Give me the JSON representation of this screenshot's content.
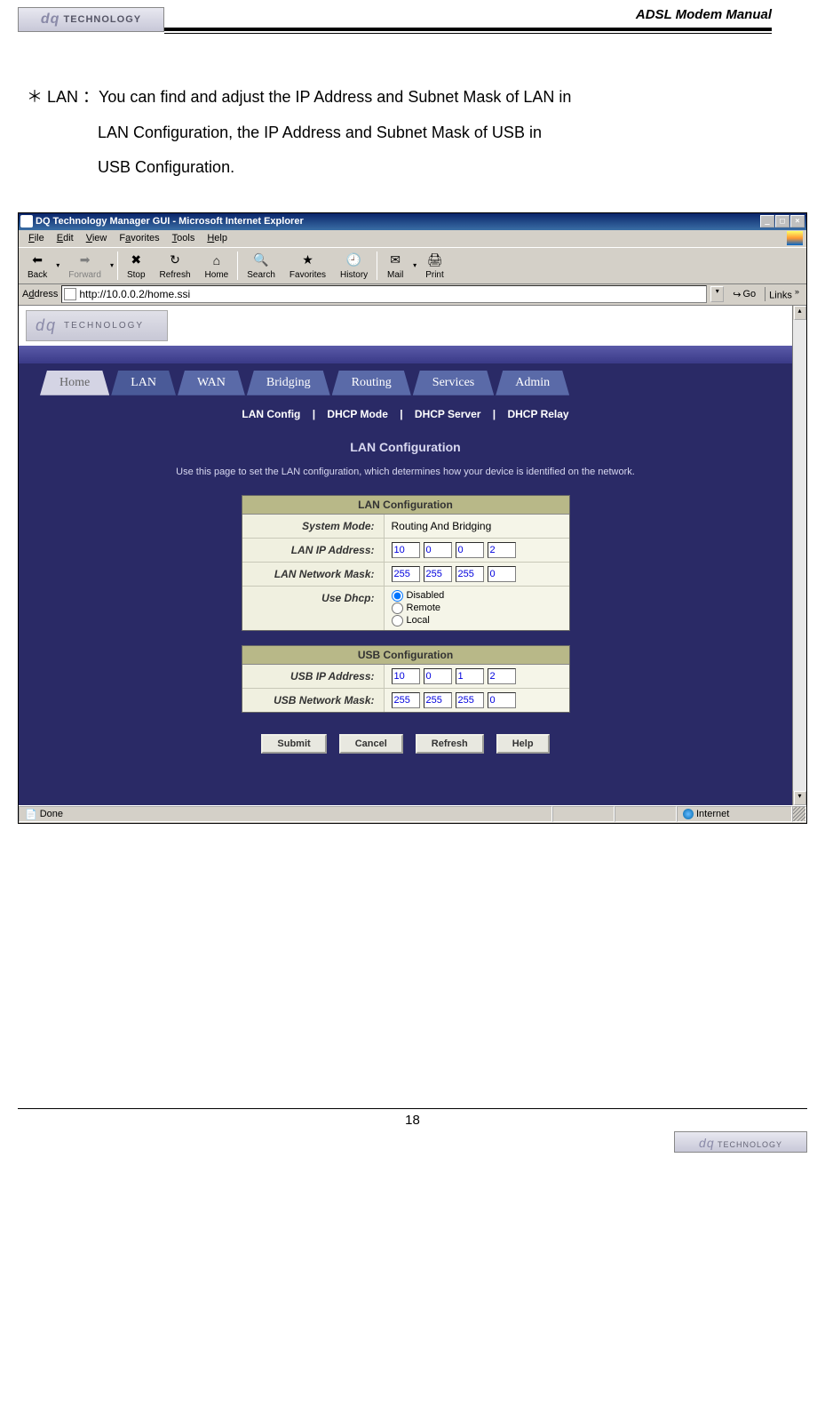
{
  "header": {
    "title": "ADSL Modem Manual",
    "logo_text": "TECHNOLOGY"
  },
  "body": {
    "bullet": "＊",
    "lead": "LAN ：",
    "line1": "You can find and adjust the IP Address and Subnet Mask of LAN in",
    "line2": "LAN Configuration, the IP Address and Subnet Mask of USB in",
    "line3": "USB Configuration."
  },
  "window": {
    "title": "DQ Technology Manager GUI - Microsoft Internet Explorer",
    "menu": {
      "file": "File",
      "edit": "Edit",
      "view": "View",
      "favorites": "Favorites",
      "tools": "Tools",
      "help": "Help"
    },
    "toolbar": {
      "back": "Back",
      "forward": "Forward",
      "stop": "Stop",
      "refresh": "Refresh",
      "home": "Home",
      "search": "Search",
      "favorites": "Favorites",
      "history": "History",
      "mail": "Mail",
      "print": "Print"
    },
    "address_label": "Address",
    "address_value": "http://10.0.0.2/home.ssi",
    "go_label": "Go",
    "links_label": "Links"
  },
  "page": {
    "banner_text": "TECHNOLOGY",
    "tabs": {
      "home": "Home",
      "lan": "LAN",
      "wan": "WAN",
      "bridging": "Bridging",
      "routing": "Routing",
      "services": "Services",
      "admin": "Admin"
    },
    "subnav": {
      "a": "LAN Config",
      "b": "DHCP Mode",
      "c": "DHCP Server",
      "d": "DHCP Relay",
      "sep": "|"
    },
    "heading": "LAN Configuration",
    "desc": "Use this page to set the LAN configuration, which determines how your device is identified on the network.",
    "lan_box": {
      "title": "LAN Configuration",
      "row1_label": "System Mode:",
      "row1_value": "Routing And Bridging",
      "row2_label": "LAN IP Address:",
      "row2_ip": [
        "10",
        "0",
        "0",
        "2"
      ],
      "row3_label": "LAN Network Mask:",
      "row3_ip": [
        "255",
        "255",
        "255",
        "0"
      ],
      "row4_label": "Use Dhcp:",
      "row4_opts": {
        "a": "Disabled",
        "b": "Remote",
        "c": "Local"
      }
    },
    "usb_box": {
      "title": "USB Configuration",
      "row1_label": "USB IP Address:",
      "row1_ip": [
        "10",
        "0",
        "1",
        "2"
      ],
      "row2_label": "USB Network Mask:",
      "row2_ip": [
        "255",
        "255",
        "255",
        "0"
      ]
    },
    "buttons": {
      "submit": "Submit",
      "cancel": "Cancel",
      "refresh": "Refresh",
      "help": "Help"
    }
  },
  "status": {
    "done": "Done",
    "internet": "Internet"
  },
  "footer": {
    "page_num": "18",
    "logo_text": "TECHNOLOGY"
  }
}
